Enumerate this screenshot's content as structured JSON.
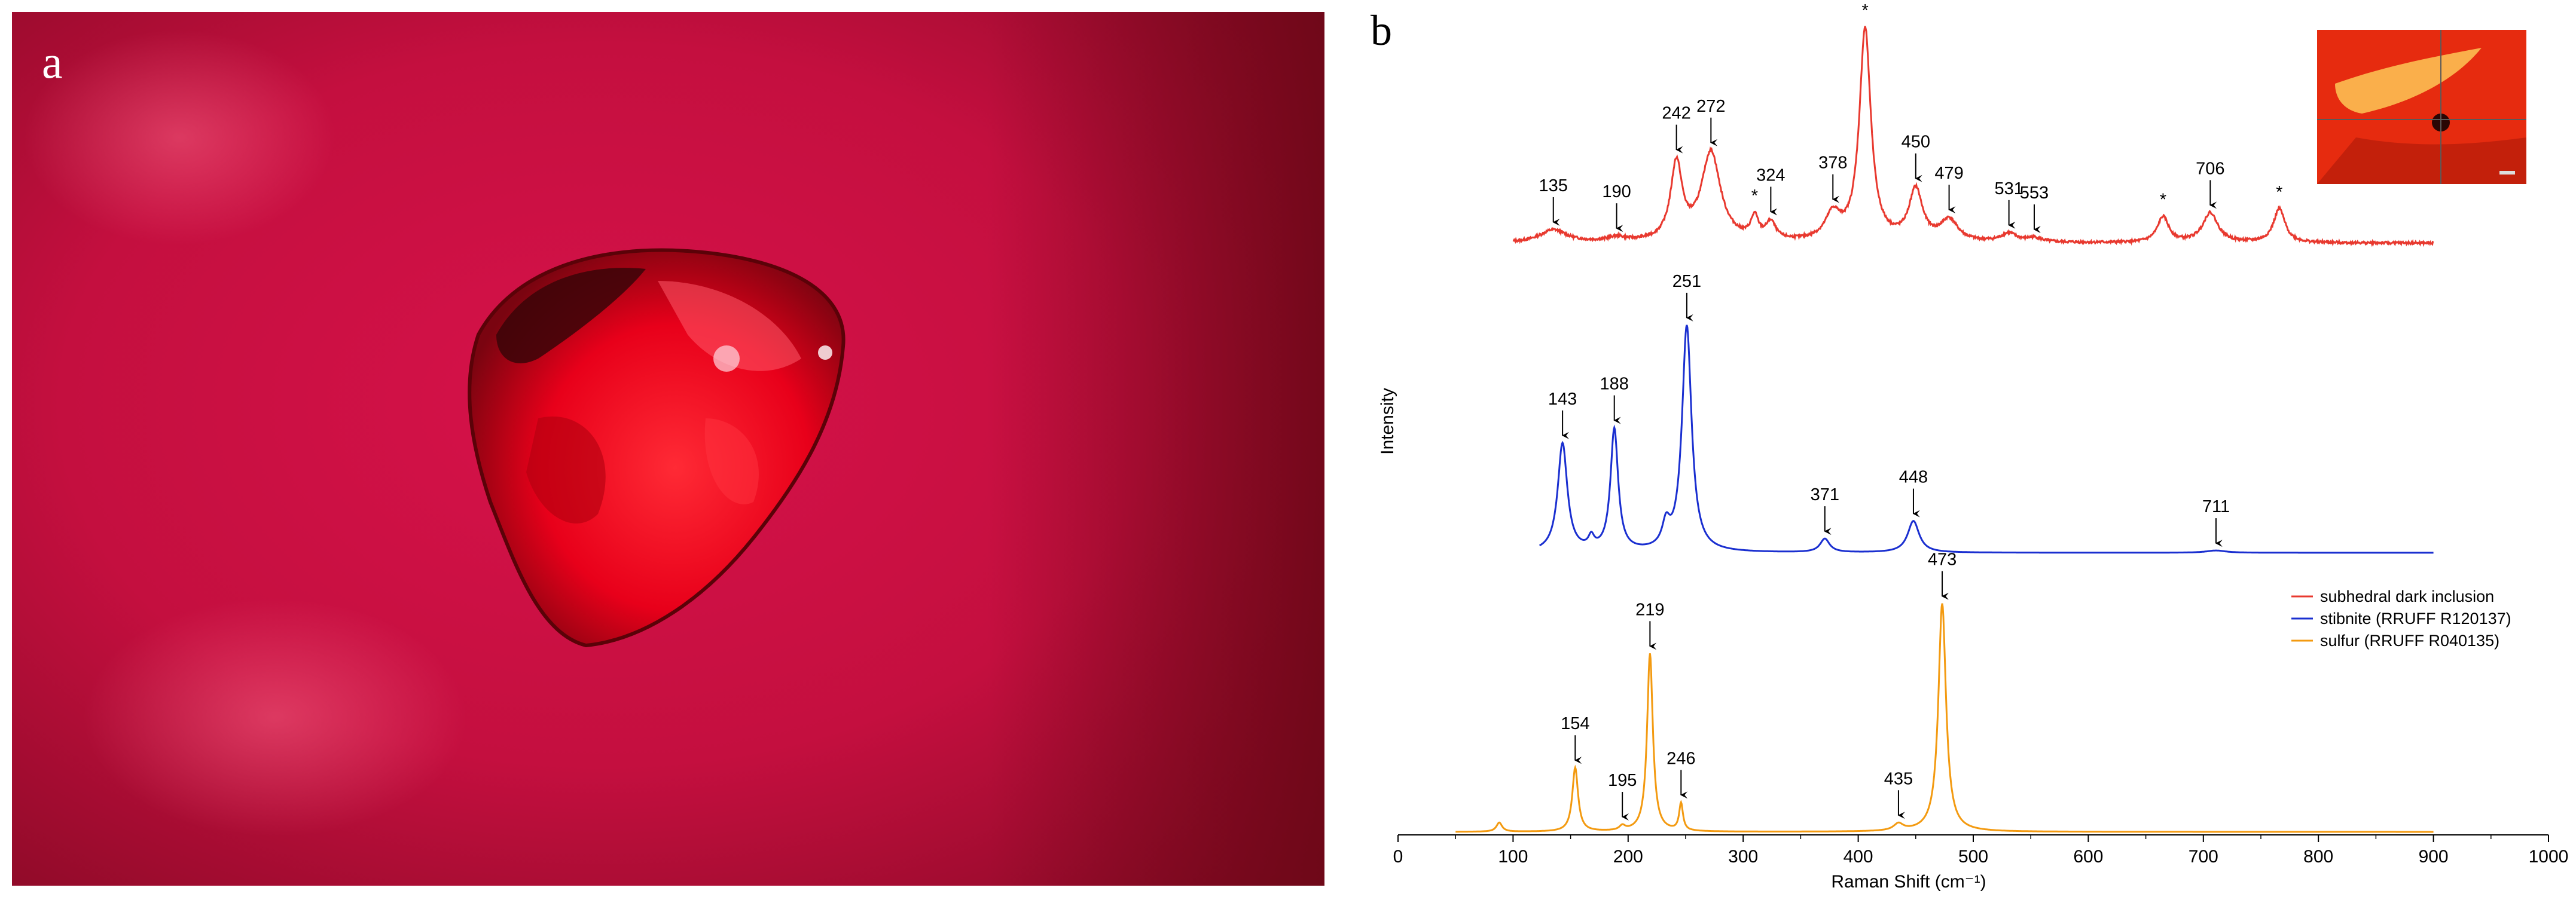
{
  "photo": {
    "panel_label": "a",
    "colors": {
      "background": "#c4103f",
      "crystal": "#e8001a",
      "dark": "#3a0508"
    }
  },
  "chart_data": {
    "type": "line",
    "panel_label": "b",
    "xlabel": "Raman Shift (cm⁻¹)",
    "ylabel": "Intensity",
    "xlim": [
      0,
      1000
    ],
    "xticks": [
      "0",
      "100",
      "200",
      "300",
      "400",
      "500",
      "600",
      "700",
      "800",
      "900",
      "1000"
    ],
    "asterisk_symbol": "*",
    "series": [
      {
        "name": "subhedral dark inclusion",
        "color": "#e8392f",
        "range": [
          100,
          900
        ],
        "baseline": 0.0,
        "peaks": [
          {
            "x": 135,
            "h": 0.06,
            "w": 14
          },
          {
            "x": 190,
            "h": 0.02,
            "w": 10
          },
          {
            "x": 242,
            "h": 0.36,
            "w": 6
          },
          {
            "x": 272,
            "h": 0.42,
            "w": 10
          },
          {
            "x": 310,
            "h": 0.1,
            "w": 4
          },
          {
            "x": 324,
            "h": 0.08,
            "w": 5
          },
          {
            "x": 378,
            "h": 0.12,
            "w": 8
          },
          {
            "x": 406,
            "h": 1.0,
            "w": 6
          },
          {
            "x": 450,
            "h": 0.24,
            "w": 7
          },
          {
            "x": 479,
            "h": 0.1,
            "w": 9
          },
          {
            "x": 531,
            "h": 0.04,
            "w": 8
          },
          {
            "x": 553,
            "h": 0.02,
            "w": 8
          },
          {
            "x": 665,
            "h": 0.12,
            "w": 6
          },
          {
            "x": 706,
            "h": 0.14,
            "w": 8
          },
          {
            "x": 766,
            "h": 0.16,
            "w": 6
          }
        ],
        "labels": [
          {
            "text": "135",
            "x": 135,
            "h": 0.06
          },
          {
            "text": "190",
            "x": 190,
            "h": 0.02
          },
          {
            "text": "242",
            "x": 242,
            "h": 0.36
          },
          {
            "text": "272",
            "x": 272,
            "h": 0.42
          },
          {
            "text": "324",
            "x": 324,
            "h": 0.08
          },
          {
            "text": "378",
            "x": 378,
            "h": 0.12
          },
          {
            "text": "450",
            "x": 450,
            "h": 0.24
          },
          {
            "text": "479",
            "x": 479,
            "h": 0.1
          },
          {
            "text": "531",
            "x": 531,
            "h": 0.04
          },
          {
            "text": "553",
            "x": 553,
            "h": 0.02
          },
          {
            "text": "706",
            "x": 706,
            "h": 0.14
          }
        ],
        "asterisks": [
          {
            "x": 310,
            "h": 0.1
          },
          {
            "x": 406,
            "h": 1.0
          },
          {
            "x": 665,
            "h": 0.12
          },
          {
            "x": 766,
            "h": 0.16
          }
        ]
      },
      {
        "name": "stibnite (RRUFF R120137)",
        "color": "#1a2fd0",
        "range": [
          123,
          900
        ],
        "baseline": 0.0,
        "peaks": [
          {
            "x": 143,
            "h": 0.48,
            "w": 5
          },
          {
            "x": 168,
            "h": 0.05,
            "w": 3
          },
          {
            "x": 188,
            "h": 0.54,
            "w": 4
          },
          {
            "x": 233,
            "h": 0.1,
            "w": 4
          },
          {
            "x": 251,
            "h": 1.0,
            "w": 5
          },
          {
            "x": 371,
            "h": 0.06,
            "w": 5
          },
          {
            "x": 448,
            "h": 0.14,
            "w": 6
          },
          {
            "x": 711,
            "h": 0.01,
            "w": 10
          }
        ],
        "labels": [
          {
            "text": "143",
            "x": 143,
            "h": 0.48
          },
          {
            "text": "188",
            "x": 188,
            "h": 0.54
          },
          {
            "text": "251",
            "x": 251,
            "h": 1.0
          },
          {
            "text": "371",
            "x": 371,
            "h": 0.06
          },
          {
            "text": "448",
            "x": 448,
            "h": 0.14
          },
          {
            "text": "711",
            "x": 711,
            "h": 0.01
          }
        ]
      },
      {
        "name": "sulfur (RRUFF R040135)",
        "color": "#f39a10",
        "range": [
          50,
          900
        ],
        "baseline": 0.0,
        "peaks": [
          {
            "x": 88,
            "h": 0.04,
            "w": 3
          },
          {
            "x": 154,
            "h": 0.28,
            "w": 3
          },
          {
            "x": 195,
            "h": 0.02,
            "w": 3
          },
          {
            "x": 219,
            "h": 0.78,
            "w": 3
          },
          {
            "x": 246,
            "h": 0.12,
            "w": 2
          },
          {
            "x": 435,
            "h": 0.03,
            "w": 5
          },
          {
            "x": 473,
            "h": 1.0,
            "w": 4
          }
        ],
        "labels": [
          {
            "text": "154",
            "x": 154,
            "h": 0.28
          },
          {
            "text": "195",
            "x": 195,
            "h": 0.02
          },
          {
            "text": "219",
            "x": 219,
            "h": 0.78
          },
          {
            "text": "246",
            "x": 246,
            "h": 0.12
          },
          {
            "text": "435",
            "x": 435,
            "h": 0.03
          },
          {
            "text": "473",
            "x": 473,
            "h": 1.0
          }
        ]
      }
    ],
    "legend": [
      "subhedral dark inclusion",
      "stibnite (RRUFF R120137)",
      "sulfur (RRUFF R040135)"
    ],
    "legend_position": "right"
  }
}
